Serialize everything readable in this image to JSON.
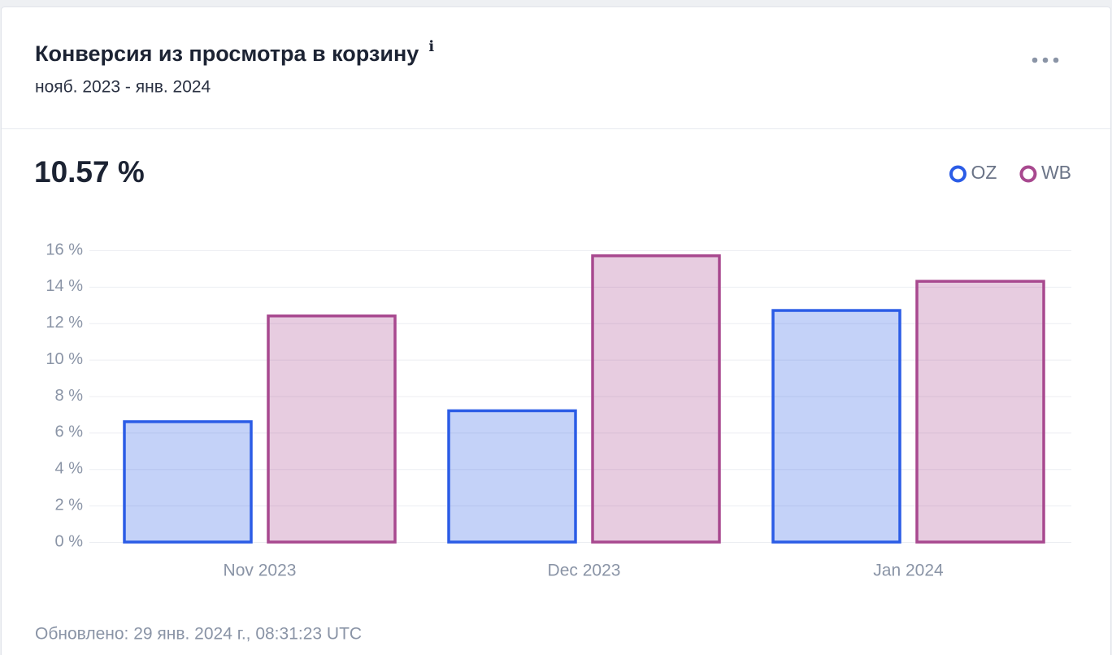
{
  "chart_data": {
    "type": "bar",
    "title": "Конверсия из просмотра в корзину",
    "subtitle": "нояб. 2023 - янв. 2024",
    "headline": "10.57 %",
    "footer": "Обновлено: 29 янв. 2024 г., 08:31:23 UTC",
    "categories": [
      "Nov 2023",
      "Dec 2023",
      "Jan 2024"
    ],
    "series": [
      {
        "name": "OZ",
        "color": "#2b5ce6",
        "values": [
          6.6,
          7.2,
          12.7
        ]
      },
      {
        "name": "WB",
        "color": "#a8498f",
        "values": [
          12.4,
          15.7,
          14.3
        ]
      }
    ],
    "ylim": [
      0,
      16
    ],
    "yticks": [
      {
        "value": 0,
        "label": "0 %"
      },
      {
        "value": 2,
        "label": "2 %"
      },
      {
        "value": 4,
        "label": "4 %"
      },
      {
        "value": 6,
        "label": "6 %"
      },
      {
        "value": 8,
        "label": "8 %"
      },
      {
        "value": 10,
        "label": "10 %"
      },
      {
        "value": 12,
        "label": "12 %"
      },
      {
        "value": 14,
        "label": "14 %"
      },
      {
        "value": 16,
        "label": "16 %"
      }
    ],
    "grid": true,
    "legend": "top-right"
  }
}
